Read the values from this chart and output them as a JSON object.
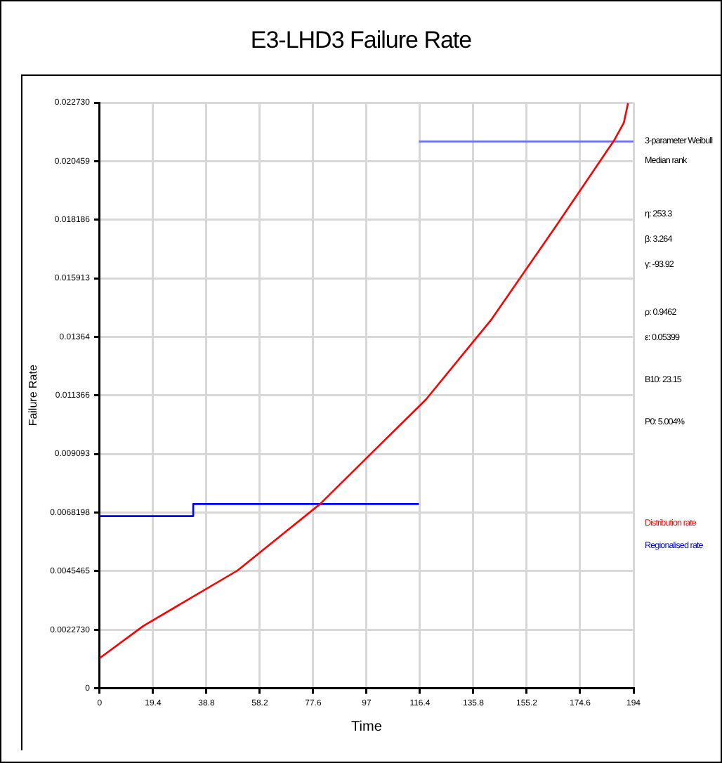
{
  "chart_data": {
    "type": "line",
    "title": "E3-LHD3 Failure Rate",
    "xlabel": "Time",
    "ylabel": "Failure Rate",
    "xlim": [
      0,
      194
    ],
    "xticks": [
      0,
      19.4,
      38.8,
      58.2,
      77.6,
      97,
      116.4,
      135.8,
      155.2,
      174.6,
      194
    ],
    "ylim": [
      0,
      0.02273
    ],
    "yticks": [
      0,
      {
        "value": 0.002273,
        "label": "0.0022730"
      },
      0.0045465,
      0.0068198,
      0.009093,
      0.011366,
      0.01364,
      0.015913,
      0.018186,
      0.020459,
      {
        "value": 0.02273,
        "label": "0.022730"
      }
    ],
    "grid": true,
    "legend": "right",
    "marker": "none",
    "series": [
      {
        "name": "Distribution rate",
        "type": "line",
        "color": "#ff0000",
        "x": [
          0,
          15.9,
          50.1,
          80.1,
          96.3,
          118.6,
          142.5,
          166.5,
          187,
          190.5,
          192
        ],
        "values": [
          0.00117,
          0.00242,
          0.00457,
          0.00715,
          0.00886,
          0.01121,
          0.01433,
          0.01804,
          0.02127,
          0.02195,
          0.0227
        ]
      },
      {
        "name": "Regionalised rate",
        "type": "step",
        "color": "#0000ff",
        "x": [
          0,
          34,
          116
        ],
        "values": [
          0.00668,
          0.00715,
          0.00715
        ]
      },
      {
        "type": "step",
        "color": "#6f6fef",
        "x": [
          116,
          194
        ],
        "values": [
          0.02122,
          0.02122
        ]
      }
    ],
    "annotations": [
      "3-parameter Weibull",
      "Median rank",
      "η: 253.3",
      "β: 3.264",
      "γ: -93.92",
      "ρ: 0.9462",
      "ε: 0.05399",
      "B10: 23.15",
      "P0: 5.004%"
    ]
  }
}
